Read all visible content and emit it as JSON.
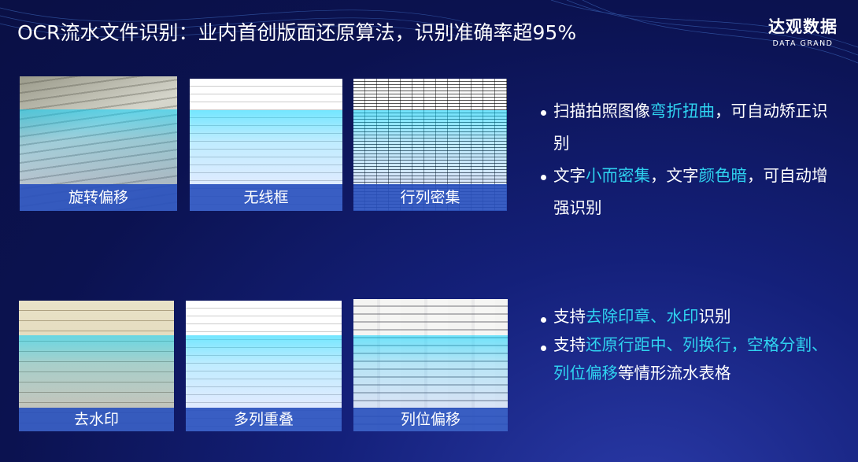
{
  "title": "OCR流水文件识别：业内首创版面还原算法，识别准确率超95%",
  "logo": {
    "cn": "达观数据",
    "en": "DATA GRAND"
  },
  "cards": [
    {
      "caption": "旋转偏移"
    },
    {
      "caption": "无线框"
    },
    {
      "caption": "行列密集"
    },
    {
      "caption": "去水印"
    },
    {
      "caption": "多列重叠"
    },
    {
      "caption": "列位偏移"
    }
  ],
  "bullets_top": [
    {
      "p1": "扫描拍照图像",
      "h1": "弯折扭曲",
      "p2": "，可自动矫正识别"
    },
    {
      "p1": "文字",
      "h1": "小而密集",
      "p2": "，文字",
      "h2": "颜色暗",
      "p3": "，可自动增强识别"
    }
  ],
  "bullets_bottom": [
    {
      "p1": "支持",
      "h1": "去除印章、水印",
      "p2": "识别"
    },
    {
      "p1": "支持",
      "h1": "还原行距中、列换行，空格分割、列位偏移",
      "p2": "等情形流水表格"
    }
  ],
  "colors": {
    "highlight": "#2fd3f0",
    "caption_bar": "#2850be",
    "background": "#0b1250"
  }
}
